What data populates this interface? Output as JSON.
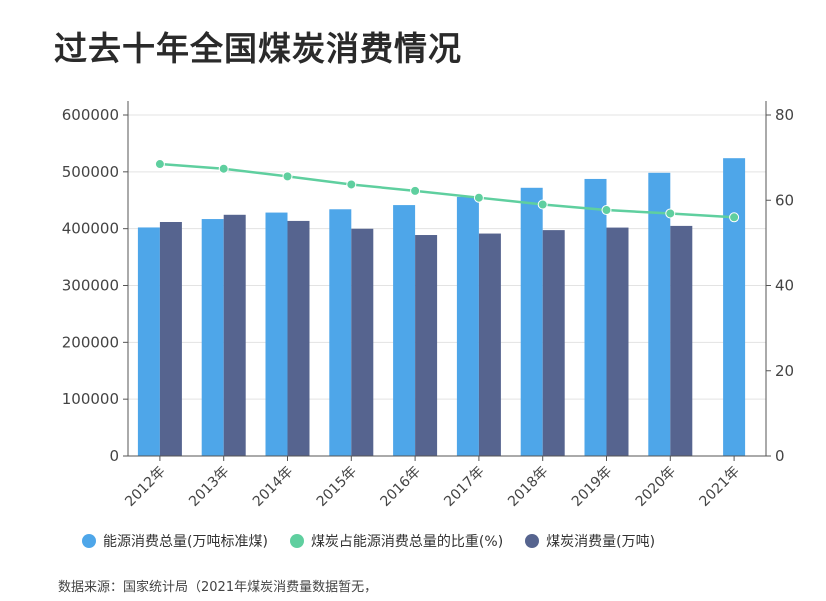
{
  "title": "过去十年全国煤炭消费情况",
  "source": "数据来源：国家统计局（2021年煤炭消费量数据暂无，",
  "legend": [
    {
      "label": "能源消费总量(万吨标准煤)",
      "color": "#4ea6e9"
    },
    {
      "label": "煤炭占能源消费总量的比重(%)",
      "color": "#5fcf9f"
    },
    {
      "label": "煤炭消费量(万吨)",
      "color": "#56648f"
    }
  ],
  "chart_data": {
    "type": "bar",
    "categories": [
      "2012年",
      "2013年",
      "2014年",
      "2015年",
      "2016年",
      "2017年",
      "2018年",
      "2019年",
      "2020年",
      "2021年"
    ],
    "series": [
      {
        "name": "能源消费总量(万吨标准煤)",
        "type": "bar",
        "axis": "left",
        "color": "#4ea6e9",
        "values": [
          402138,
          416913,
          428334,
          434113,
          441492,
          455827,
          471925,
          487488,
          498314,
          524000
        ]
      },
      {
        "name": "煤炭消费量(万吨)",
        "type": "bar",
        "axis": "left",
        "color": "#56648f",
        "values": [
          411727,
          424426,
          413633,
          399834,
          388820,
          391403,
          397452,
          401915,
          404860,
          null
        ]
      },
      {
        "name": "煤炭占能源消费总量的比重(%)",
        "type": "line",
        "axis": "right",
        "color": "#5fcf9f",
        "values": [
          68.5,
          67.4,
          65.6,
          63.7,
          62.2,
          60.6,
          59.0,
          57.7,
          56.9,
          56.0
        ]
      }
    ],
    "y_left": {
      "range": [
        0,
        600000
      ],
      "ticks": [
        0,
        100000,
        200000,
        300000,
        400000,
        500000,
        600000
      ]
    },
    "y_right": {
      "range": [
        0,
        80
      ],
      "ticks": [
        0,
        20,
        40,
        60,
        80
      ]
    },
    "grid": true,
    "legend_position": "bottom"
  }
}
